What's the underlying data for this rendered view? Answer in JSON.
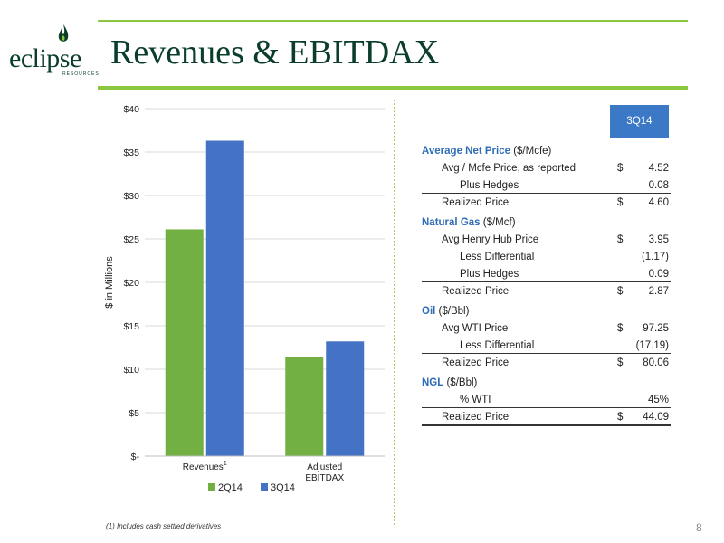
{
  "header": {
    "title": "Revenues & EBITDAX",
    "logo_word": "eclipse",
    "logo_sub": "RESOURCES"
  },
  "colors": {
    "accent_green": "#8dc63f",
    "brand_dark": "#0a3d2a",
    "series_2q14": "#72b043",
    "series_3q14": "#4472c4",
    "table_header": "#3b78c6"
  },
  "chart_data": {
    "type": "bar",
    "categories": [
      "Revenues",
      "Adjusted EBITDAX"
    ],
    "category_superscripts": [
      "1",
      ""
    ],
    "series": [
      {
        "name": "2Q14",
        "values": [
          26.1,
          11.4
        ],
        "color": "#72b043"
      },
      {
        "name": "3Q14",
        "values": [
          36.3,
          13.2
        ],
        "color": "#4472c4"
      }
    ],
    "ylabel": "$ in Millions",
    "ylim": [
      0,
      40
    ],
    "yticks": [
      0,
      5,
      10,
      15,
      20,
      25,
      30,
      35,
      40
    ],
    "ytick_labels": [
      "$-",
      "$5",
      "$10",
      "$15",
      "$20",
      "$25",
      "$30",
      "$35",
      "$40"
    ],
    "grid": true,
    "legend": "bottom"
  },
  "table": {
    "column_header": "3Q14",
    "rows": [
      {
        "type": "section",
        "label": "Average Net Price",
        "unit": "($/Mcfe)"
      },
      {
        "type": "row",
        "indent": 1,
        "label": "Avg / Mcfe Price, as reported",
        "currency": "$",
        "value": "4.52"
      },
      {
        "type": "row",
        "indent": 2,
        "label": "Plus Hedges",
        "currency": "",
        "value": "0.08",
        "rule": true
      },
      {
        "type": "row",
        "indent": 1,
        "label": "Realized Price",
        "currency": "$",
        "value": "4.60"
      },
      {
        "type": "section",
        "label": "Natural Gas",
        "unit": "($/Mcf)"
      },
      {
        "type": "row",
        "indent": 1,
        "label": "Avg Henry Hub Price",
        "currency": "$",
        "value": "3.95"
      },
      {
        "type": "row",
        "indent": 2,
        "label": "Less Differential",
        "currency": "",
        "value": "(1.17)"
      },
      {
        "type": "row",
        "indent": 2,
        "label": "Plus Hedges",
        "currency": "",
        "value": "0.09",
        "rule": true
      },
      {
        "type": "row",
        "indent": 1,
        "label": "Realized Price",
        "currency": "$",
        "value": "2.87"
      },
      {
        "type": "section",
        "label": "Oil",
        "unit": "($/Bbl)"
      },
      {
        "type": "row",
        "indent": 1,
        "label": "Avg WTI Price",
        "currency": "$",
        "value": "97.25"
      },
      {
        "type": "row",
        "indent": 2,
        "label": "Less Differential",
        "currency": "",
        "value": "(17.19)",
        "rule": true
      },
      {
        "type": "row",
        "indent": 1,
        "label": "Realized Price",
        "currency": "$",
        "value": "80.06"
      },
      {
        "type": "section",
        "label": "NGL",
        "unit": "($/Bbl)"
      },
      {
        "type": "row",
        "indent": 2,
        "label": "% WTI",
        "currency": "",
        "value": "45%",
        "rule": true
      },
      {
        "type": "row",
        "indent": 1,
        "label": "Realized Price",
        "currency": "$",
        "value": "44.09",
        "rule_thick": true
      }
    ]
  },
  "footnote": "(1) Includes cash settled derivatives",
  "page_number": "8"
}
